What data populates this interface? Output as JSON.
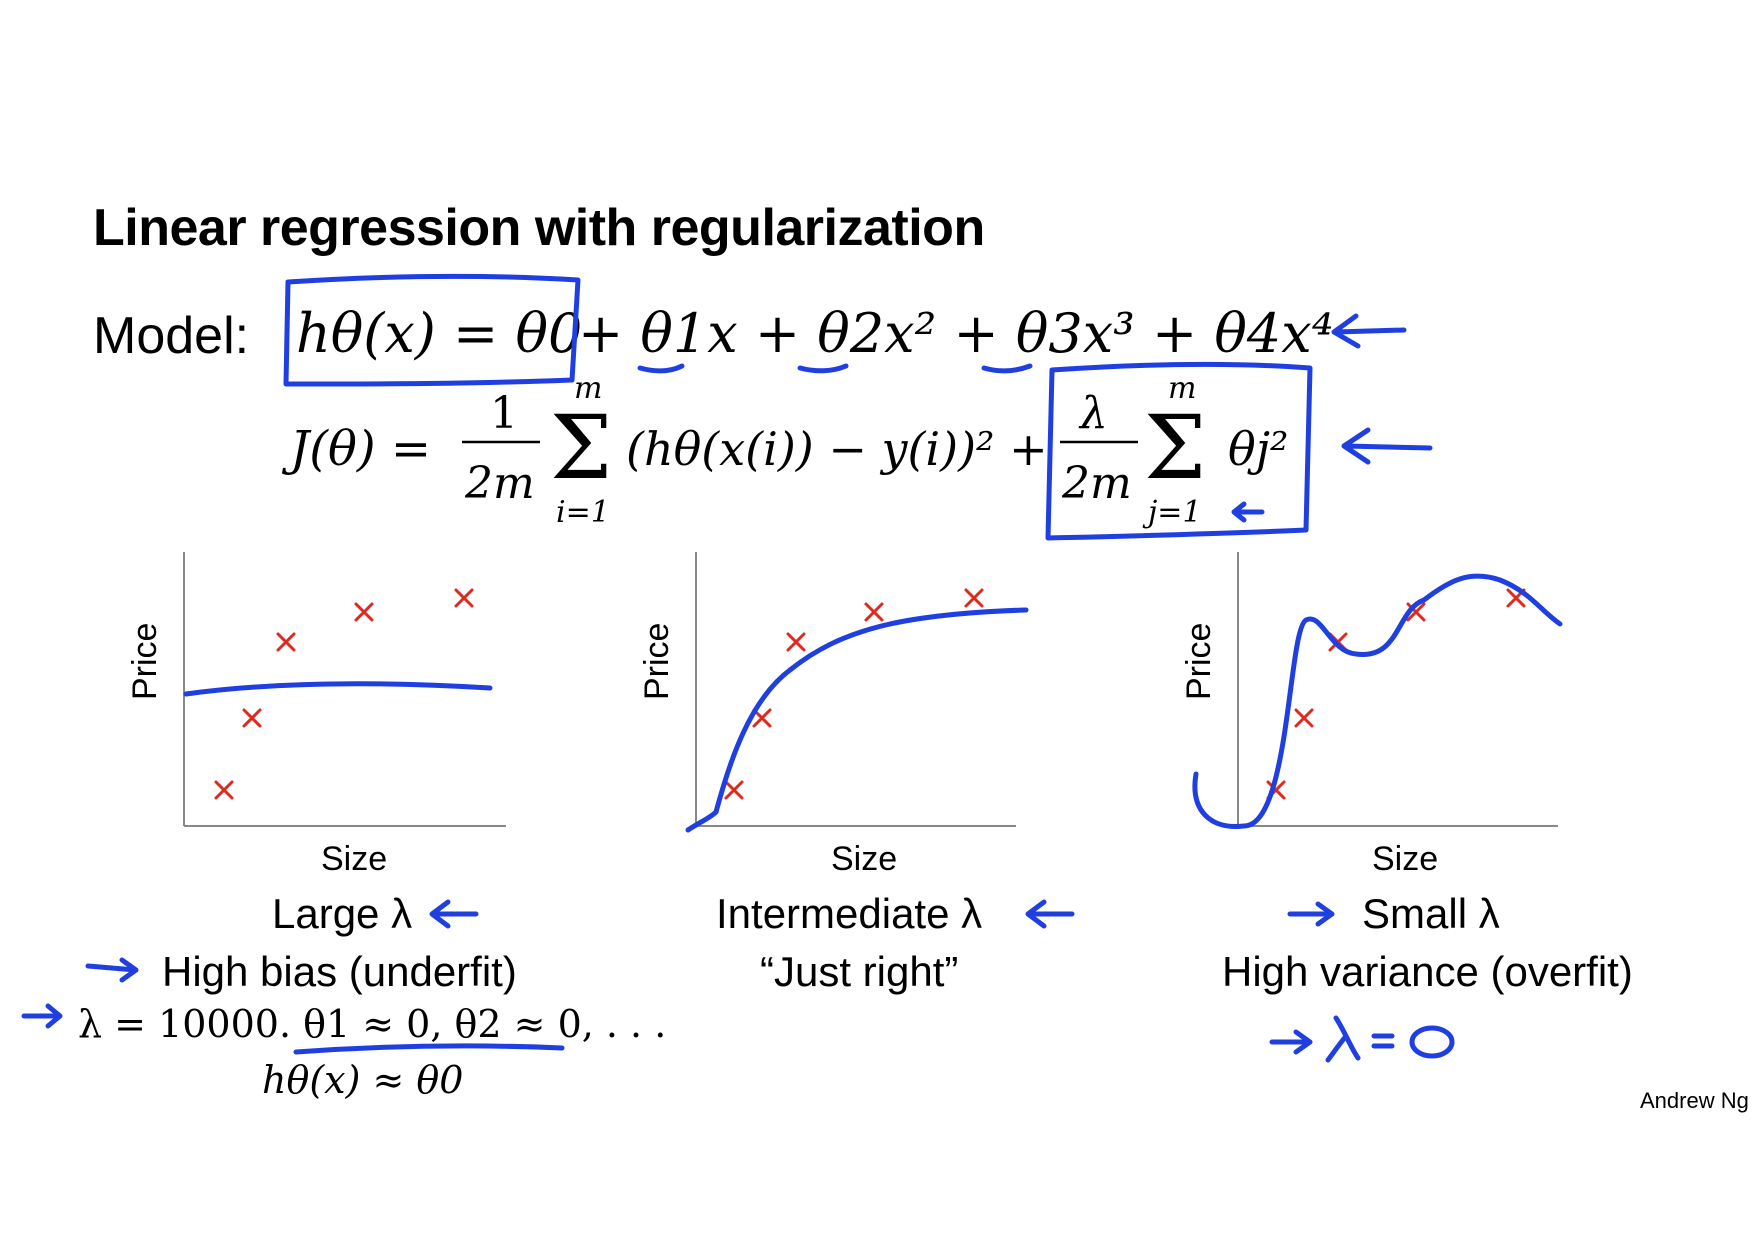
{
  "title": "Linear regression with regularization",
  "model_label": "Model:",
  "equations": {
    "model_lhs": "hθ(x) = θ0",
    "model_rest": "+ θ1x + θ2x² + θ3x³ + θ4x⁴",
    "cost": "J(θ) = (1/2m) Σ_{i=1}^{m} (hθ(x^(i)) − y^(i))² + (λ/2m) Σ_{j=1}^{m} θj²",
    "cost_lhs": "J(θ) =",
    "one": "1",
    "two_m": "2m",
    "lambda": "λ",
    "sum_upper": "m",
    "sum_lower_i": "i=1",
    "sum_lower_j": "j=1",
    "cost_term": "(hθ(x(i)) − y(i))² +",
    "reg_term": "θj²"
  },
  "charts": [
    {
      "name": "large-lambda",
      "ylabel": "Price",
      "xlabel": "Size",
      "caption_line1": "Large λ",
      "caption_line2": "High bias (underfit)",
      "note_line1": "λ = 10000.  θ1 ≈ 0, θ2 ≈ 0, . . .",
      "note_line2": "hθ(x) ≈ θ0"
    },
    {
      "name": "intermediate-lambda",
      "ylabel": "Price",
      "xlabel": "Size",
      "caption_line1": "Intermediate λ",
      "caption_line2": "“Just right”"
    },
    {
      "name": "small-lambda",
      "ylabel": "Price",
      "xlabel": "Size",
      "caption_line1": "Small λ",
      "caption_line2": "High variance (overfit)",
      "handwritten_note": "λ = 0"
    }
  ],
  "signature": "Andrew Ng",
  "colors": {
    "ink": "#1f3fe0",
    "marker": "#e0281e",
    "axis": "#888888",
    "text": "#000000"
  }
}
